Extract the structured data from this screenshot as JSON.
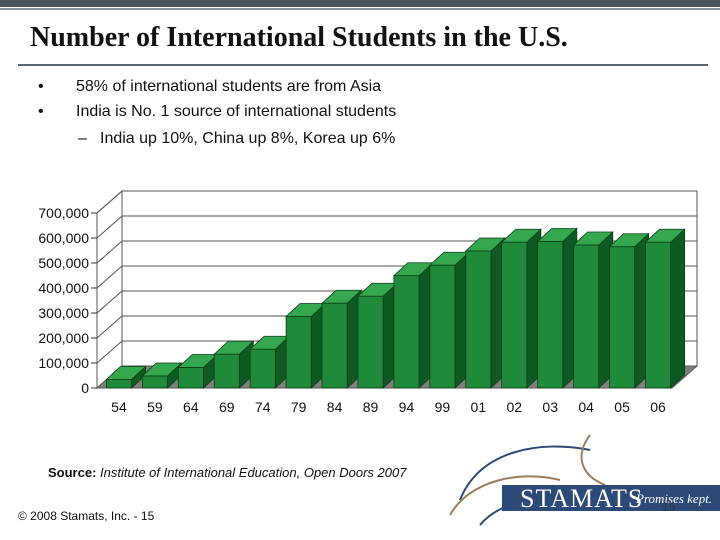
{
  "slide": {
    "title": "Number of International Students in the U.S.",
    "bullets": [
      {
        "marker": "•",
        "text": "58% of international students are from Asia"
      },
      {
        "marker": "•",
        "text": "India is No. 1 source of international students"
      },
      {
        "marker": "–",
        "text": "India up 10%, China up 8%, Korea up 6%"
      }
    ],
    "source_label": "Source:",
    "source_text": "Institute of International Education, Open Doors 2007",
    "copyright": "© 2008 Stamats, Inc. - 15",
    "logo_name": "STAMATS",
    "logo_tagline": "Promises kept.",
    "page_number": "15"
  },
  "colors": {
    "bar_front": "#1f8a3a",
    "bar_top": "#35a84f",
    "bar_side": "#0d5a22",
    "floor": "#7f7f7f",
    "logo_blue": "#2b4a78",
    "logo_tan": "#9a7d5a"
  },
  "chart_data": {
    "type": "bar",
    "title": "",
    "xlabel": "",
    "ylabel": "",
    "categories": [
      "54",
      "59",
      "64",
      "69",
      "74",
      "79",
      "84",
      "89",
      "94",
      "99",
      "01",
      "02",
      "03",
      "04",
      "05",
      "06"
    ],
    "values": [
      34000,
      48000,
      82000,
      135000,
      155000,
      286000,
      339000,
      367000,
      449000,
      491000,
      548000,
      583000,
      586000,
      572000,
      565000,
      583000
    ],
    "ylim": [
      0,
      700000
    ],
    "yticks": [
      0,
      100000,
      200000,
      300000,
      400000,
      500000,
      600000,
      700000
    ],
    "ytick_labels": [
      "0",
      "100,000",
      "200,000",
      "300,000",
      "400,000",
      "500,000",
      "600,000",
      "700,000"
    ],
    "grid": true,
    "legend": "none"
  }
}
